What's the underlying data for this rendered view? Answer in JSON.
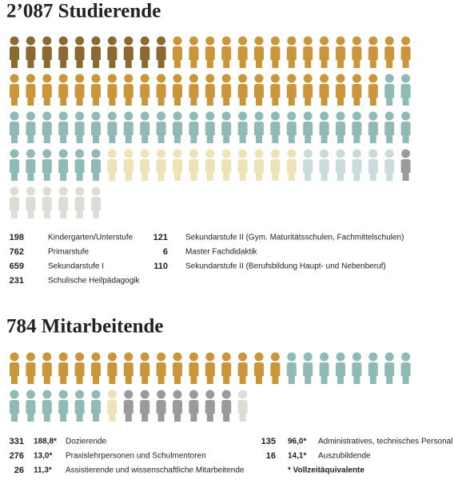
{
  "students": {
    "title": "2’087 Studierende",
    "groups": [
      {
        "value": 198,
        "label": "Kindergarten/Unterstufe",
        "color": "#8a6a2e"
      },
      {
        "value": 762,
        "label": "Primarstufe",
        "color": "#c9973a"
      },
      {
        "value": 659,
        "label": "Sekundarstufe I",
        "color": "#8fbab5"
      },
      {
        "value": 231,
        "label": "Schulische Heilpädagogik",
        "color": "#efe2b8"
      },
      {
        "value": 121,
        "label": "Sekundarstufe II (Gym. Maturitätsschulen, Fachmittelschulen)",
        "color": "#c8dcdb"
      },
      {
        "value": 6,
        "label": "Master Fachdidaktik",
        "color": "#9a9a9a"
      },
      {
        "value": 110,
        "label": "Sekundarstufe II (Berufsbildung Haupt- und Nebenberuf)",
        "color": "#dddcd6"
      }
    ]
  },
  "staff": {
    "title": "784 Mitarbeitende",
    "groups": [
      {
        "value": 331,
        "fte": "188,8*",
        "label": "Dozierende",
        "color": "#c9973a"
      },
      {
        "value": 276,
        "fte": "13,0*",
        "label": "Praxislehrpersonen und Schulmentoren",
        "color": "#8fbab5"
      },
      {
        "value": 26,
        "fte": "11,3*",
        "label": "Assistierende und wissenschaftliche Mitarbeitende",
        "color": "#efe2b8"
      },
      {
        "value": 135,
        "fte": "96,0*",
        "label": "Administratives, technisches Personal",
        "color": "#9a9a9a"
      },
      {
        "value": 16,
        "fte": "14,1*",
        "label": "Auszubildende",
        "color": "#dddcd6"
      }
    ],
    "footnote": "* Vollzeitäquivalente"
  }
}
